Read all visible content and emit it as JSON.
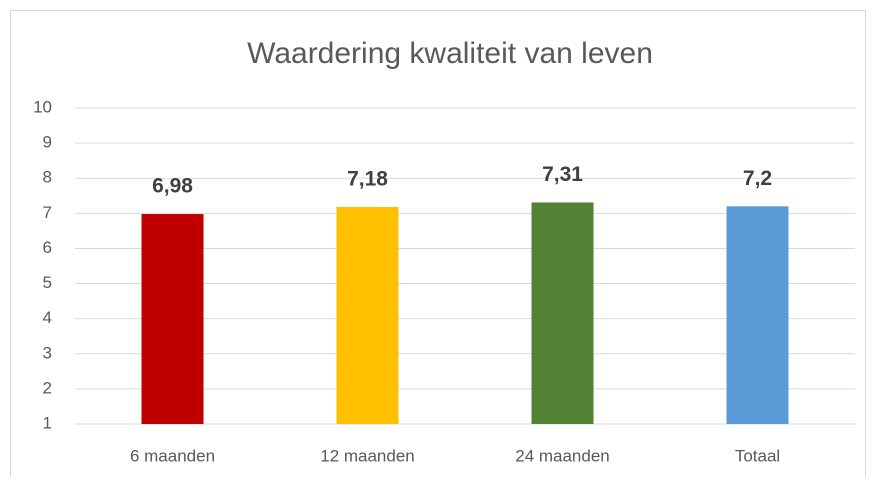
{
  "chart_data": {
    "type": "bar",
    "title": "Waardering kwaliteit van leven",
    "categories": [
      "6 maanden",
      "12 maanden",
      "24 maanden",
      "Totaal"
    ],
    "values": [
      6.98,
      7.18,
      7.31,
      7.2
    ],
    "value_labels": [
      "6,98",
      "7,18",
      "7,31",
      "7,2"
    ],
    "colors": [
      "#c00000",
      "#ffc000",
      "#548235",
      "#5b9bd5"
    ],
    "ylim": [
      1,
      10
    ],
    "yticks": [
      1,
      2,
      3,
      4,
      5,
      6,
      7,
      8,
      9,
      10
    ],
    "grid": true
  }
}
